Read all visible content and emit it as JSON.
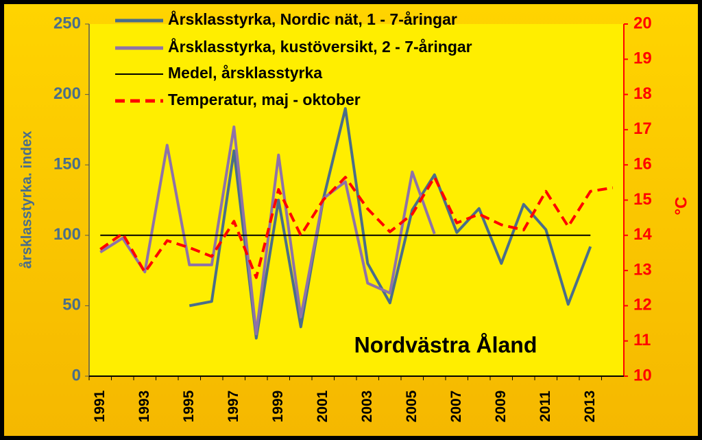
{
  "chart_data": {
    "type": "line",
    "annotation": "Nordvästra Åland",
    "y_label": "årsklasstyrka. index",
    "y2_label": "°C",
    "categories": [
      "1991",
      null,
      "1993",
      null,
      "1995",
      null,
      "1997",
      null,
      "1999",
      null,
      "2001",
      null,
      "2003",
      null,
      "2005",
      null,
      "2007",
      null,
      "2009",
      null,
      "2011",
      null,
      "2013",
      null
    ],
    "ylim": [
      0,
      250
    ],
    "yticks": [
      0,
      50,
      100,
      150,
      200,
      250
    ],
    "y2lim": [
      10,
      20
    ],
    "y2ticks": [
      10,
      11,
      12,
      13,
      14,
      15,
      16,
      17,
      18,
      19,
      20
    ],
    "series": [
      {
        "name": "Årsklasstyrka, Nordic nät, 1 - 7-åringar",
        "color": "#4a6e8a",
        "dash": false,
        "values": [
          null,
          null,
          null,
          null,
          50,
          53,
          160,
          27,
          125,
          35,
          125,
          190,
          80,
          52,
          118,
          143,
          102,
          119,
          80,
          122,
          104,
          51,
          92,
          null
        ]
      },
      {
        "name": "Årsklasstyrka, kustöversikt, 2 - 7-åringar",
        "color": "#8e72a8",
        "dash": false,
        "values": [
          88,
          98,
          74,
          164,
          79,
          79,
          177,
          30,
          157,
          42,
          126,
          138,
          66,
          59,
          145,
          101,
          null,
          null,
          null,
          null,
          null,
          null,
          null,
          null
        ]
      },
      {
        "name": "Medel, årsklasstyrka",
        "color": "#000000",
        "dash": false,
        "values": [
          100,
          100,
          100,
          100,
          100,
          100,
          100,
          100,
          100,
          100,
          100,
          100,
          100,
          100,
          100,
          100,
          100,
          100,
          100,
          100,
          100,
          100,
          100,
          null
        ]
      },
      {
        "name": "Temperatur, maj - oktober",
        "color": "#ff0000",
        "dash": true,
        "axis": "y2",
        "values": [
          13.6,
          14.05,
          12.95,
          13.85,
          13.65,
          13.4,
          14.4,
          12.8,
          15.3,
          14.0,
          15.0,
          15.65,
          14.75,
          14.1,
          14.6,
          15.65,
          14.35,
          14.6,
          14.3,
          14.15,
          15.25,
          14.25,
          15.25,
          15.35
        ]
      }
    ]
  }
}
